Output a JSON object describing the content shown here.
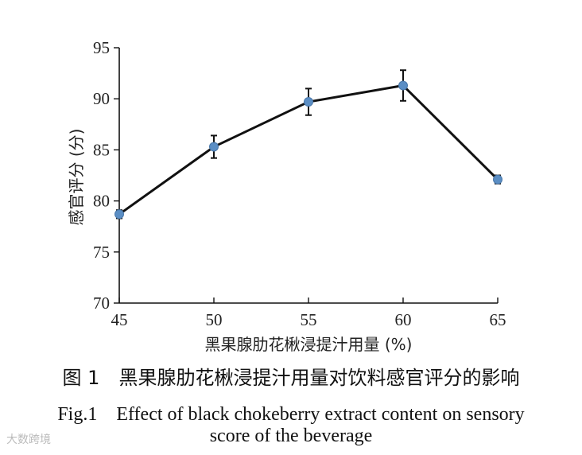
{
  "chart_data": {
    "type": "line",
    "xlabel": "黑果腺肋花楸浸提汁用量 (%)",
    "ylabel": "感官评分 (分)",
    "xlim": [
      45,
      65
    ],
    "ylim": [
      70,
      95
    ],
    "x_ticks": [
      45,
      50,
      55,
      60,
      65
    ],
    "y_ticks": [
      70,
      75,
      80,
      85,
      90,
      95
    ],
    "grid": false,
    "series": [
      {
        "x": [
          45,
          50,
          55,
          60,
          65
        ],
        "y": [
          78.7,
          85.3,
          89.7,
          91.3,
          82.1
        ],
        "error": [
          0.4,
          1.1,
          1.3,
          1.5,
          0.4
        ]
      }
    ],
    "colors": {
      "line": "#111111",
      "marker": "#5b8ec4",
      "axis": "#111111"
    }
  },
  "caption": {
    "cn": "图 1　黑果腺肋花楸浸提汁用量对饮料感官评分的影响",
    "en_line1": "Fig.1　Effect of black chokeberry extract content on sensory",
    "en_line2": "score of the beverage"
  },
  "watermark": "大数跨境"
}
